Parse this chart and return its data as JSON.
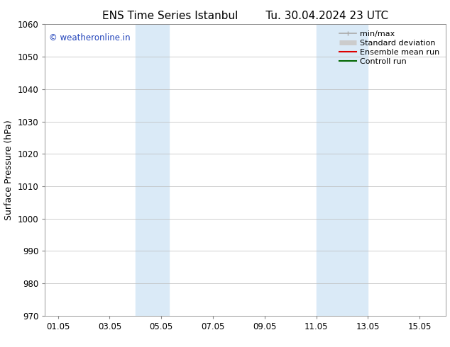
{
  "title_left": "ENS Time Series Istanbul",
  "title_right": "Tu. 30.04.2024 23 UTC",
  "ylabel": "Surface Pressure (hPa)",
  "xlabel": "",
  "ylim": [
    970,
    1060
  ],
  "yticks": [
    970,
    980,
    990,
    1000,
    1010,
    1020,
    1030,
    1040,
    1050,
    1060
  ],
  "xtick_labels": [
    "01.05",
    "03.05",
    "05.05",
    "07.05",
    "09.05",
    "11.05",
    "13.05",
    "15.05"
  ],
  "xtick_positions": [
    1,
    3,
    5,
    7,
    9,
    11,
    13,
    15
  ],
  "xlim": [
    0.5,
    16.0
  ],
  "shaded_bands": [
    {
      "xmin": 4.0,
      "xmax": 5.3
    },
    {
      "xmin": 11.0,
      "xmax": 13.0
    }
  ],
  "shade_color": "#daeaf7",
  "background_color": "#ffffff",
  "watermark_text": "© weatheronline.in",
  "watermark_color": "#2244bb",
  "legend_items": [
    {
      "label": "min/max",
      "color": "#aaaaaa",
      "lw": 1.2
    },
    {
      "label": "Standard deviation",
      "color": "#cccccc",
      "lw": 5
    },
    {
      "label": "Ensemble mean run",
      "color": "#dd0000",
      "lw": 1.5
    },
    {
      "label": "Controll run",
      "color": "#006600",
      "lw": 1.5
    }
  ],
  "grid_color": "#bbbbbb",
  "tick_fontsize": 8.5,
  "title_fontsize": 11,
  "ylabel_fontsize": 9,
  "legend_fontsize": 8
}
